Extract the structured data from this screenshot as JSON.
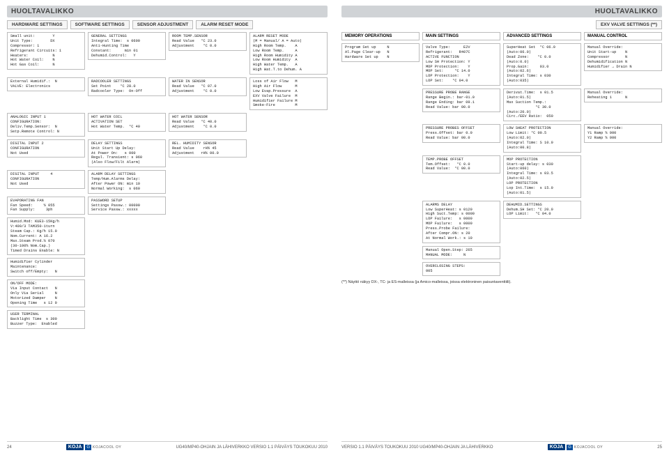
{
  "title": "HUOLTAVALIKKO",
  "left": {
    "tabs": [
      "HARDWARE SETTINGS",
      "SOFTWARE SETTINGS",
      "SENSOR ADJUSTMENT",
      "ALARM RESET MODE"
    ],
    "blocks": {
      "hw1": "Small unit:        Y\nUnit Type:        DX\nCompressor: 1\nRefrigerant Circuits: 1\nHeaters:           N\nHot Water Coil:    N\nHot Gas Coil:      N",
      "hw2": "External Humidif.:  N\nVALVE: Electronics",
      "ai1": "ANALOGIC INPUT 1\nCONFIGURATION:\nDeliv.Temp.Sensor:  N\nSetp.Remote Control: N",
      "di2": "DIGITAL INPUT 2\nCONFIGURATION\nNot Used",
      "di4": "DIGITAL INPUT     4\nCONFIGURATION\nNot Used",
      "ef": "EVAPORATING FAN\nFan Speed:     % 055\nFan Supply:     3ph",
      "hm": "Humid.Mod: KUE3-15Kg/h\nV:400/3 TAM350-1turn\nSteam Cap.: Kg/h 15.0\nNom.Current: A 16.2\nMax.Steam Prod.% 070\n(30-100% Nom.Cap.)\nTimed Drains Enable: N",
      "hc": "Humidifier Cylinder\nMaintenance:\nSwitch off/Empty:   N",
      "om": "ON/OFF MODE:\nVia Input Contact   N\nOnly Via Serial     N\nMotorized Damper    N\nOpening Time   s 12 0",
      "ut": "USER TERMINAL\nBacklight Time  s 300\nBuzzer Type:  Enabled",
      "gs": "GENERAL SETTINGS\nIntegral Time:  s 0600\nAnti-Hunting Time\nConstant:      min 01\nDehumid.Control:   Y",
      "rc": "RADCOOLER SETTINGS\nSet Point    °C 28.0\nRadcooler Type:  On-Off",
      "hwc": "HOT WATER COIL\nACTIVATION SET\nHot Water Temp.  °C 40",
      "ds": "DELAY SETTINGS\nUnit Start Up Delay:\nAt Power On:   s 000\nRegul. Transient: s 060\n(Also Flow/Filt Alarm)",
      "ads": "ALARM DELAY SETTINGS\nTemp/Hum.Alarms Delay:\nAfter Power ON: min 10\nNormal Working:  s 060",
      "pw": "PASSWORD SETUP\nSettings Passw.: 00000\nService Passw.: xxxxx",
      "rts": "ROOM TEMP.SENSOR\nRead Value   °C 23.0\nAdjustment    °C 0.0",
      "wis": "WATER IN SENSOR\nRead Value   °C 07.0\nAdjustment    °C 0.0",
      "hws": "HOT WATER SENSOR\nRead Value   °C 40.0\nAdjustment    °C 0.0",
      "rhs": "REL. HUMIDITY SENSOR\nRead Value    rH% 45\nAdjustment   rH% 00.0",
      "arm": "ALARM RESET MODE\n(M = Manual/ A = Auto)\nHigh Room Temp.    A\nLow Room Temp.     A\nHigh Room Humidity A\nLow Room Humidity  A\nHigh Water Temp.   A\nHigh Wat.T.to Dehum. A",
      "arm2": "Loss of Air Flow   M\nHigh Air Flow      M\nLow Evap.Pressure  A\nEXV Valve Failure  M\nHumidifier Failure M\nSmoke-Fire         M"
    },
    "footer_page": "24",
    "footer_text": "UG40/MP40-OHJAIN JA LÄHIVERKKO  VERSIO 1.1  PÄIVÄYS TOUKOKUU 2010"
  },
  "right": {
    "tab": "EXV VALVE SETTINGS (**)",
    "headings": [
      "MEMORY OPERATIONS",
      "MAIN SETTINGS",
      "ADVANCED SETTINGS",
      "MANUAL CONTROL"
    ],
    "blocks": {
      "mo": "Program Set up     N\nAl.Page Clear-up   N\nHardware Set up    N",
      "ms1": "Valve Type:      E2V\nRefrigerant:   R407C\nACTIVE FUNCTION\nLow SH Protection: Y\nMOP Protection:    Y\nMOP Set:     °C 14.0\nLOP Protection:    Y\nLOP Set:    °C 04.0",
      "ms2": "PRESSURE PROBE RANGE\nRange Begin.: bar-01.0\nRange Ending: bar 09.1\nRead Value: bar 00.0",
      "ms3": "PRESSURE PROBES OFFSET\nPress.Offset: bar 0.0\nRead Value: bar 00.0",
      "ms4": "TEMP.PROBE OFFSET\nTem.Offset:   °C 0.0\nRead Value:  °C 00.0",
      "ms5": "ALARMS DELAY\nLow SuperHeat: s 0120\nHigh Suct.Temp: s 0000\nLOP Failure:   s 0000\nMOP Failure:   s 0000\nPress.Probe Failure:\nAfter Compr.ON: s 20\nAt Normal Work.: s 10",
      "ms6": "Manual Open.Step: 265\nMANUAL MODE:     N",
      "ms7": "OVERCLOSING STEPS:\n005",
      "as1": "SuperHeat Set  °C 06.0\n(Auto:06.0)\nDead Zone:    °C 0.0\n(Auto:0.0)\nProp.Gain:     03.0\n(Auto:02.6)\nIntegral Time: s 030\n(Auto:035)",
      "as2": "Derivat.Time:  s 01.5\n(Auto:01.5)\nMax Suction Temp.:\n             °C 30.0\n(Auto:20.0)\nCirc./EEV Ratio:  050",
      "as3": "LOW SHEAT PROTECTION\nLow Limit: °C 00.5\n(Auto:02.0)\nIntegral Time: S 10.0\n(Auto:00.8)",
      "as4": "MOP PROTECTION\nStart-up delay: s 030\n(Auto:060)\nIntegral Time: s 03.5\n(Auto:02.5)\nLOP PROTECTION\nLop Int.Time:  s 15.0\n(Auto:01.5)",
      "as5": "DEHUMID.SETTINGS\nDehum.SH Set: °C 20.0\nLOP Limit:   °C 04.0",
      "mc1": "Manual Override:\nUnit Start-up    N\nCompressor       N\nDehumidification N\nHumidifier → Drain N",
      "mc2": "Manual Override:\nReheating 1      N",
      "mc3": "Manual Override:\nY1 Ramp % 000\nY2 Ramp % 000"
    },
    "note": "(**) Näyttö näkyy DX-, TC- ja ES-malleissa (ja Amico-malleissa, joissa elektroninen paisuntaventtiili).",
    "footer_text": "VERSIO 1.1  PÄIVÄYS TOUKOKUU 2010   UG40/MP40-OHJAIN JA LÄHIVERKKO",
    "footer_page": "25"
  },
  "logo": {
    "brand": "KOJA",
    "company": "KOJACOOL OY"
  }
}
